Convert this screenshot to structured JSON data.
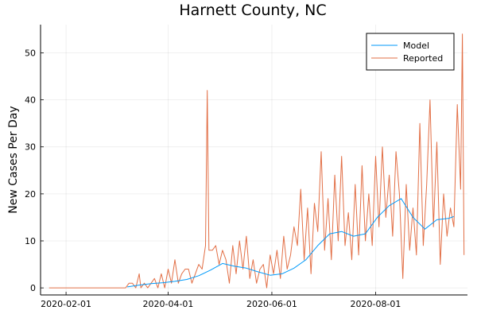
{
  "chart_data": {
    "type": "line",
    "title": "Harnett County, NC",
    "xlabel": "",
    "ylabel": "New Cases Per Day",
    "xlim": [
      "2020-01-17",
      "2020-09-24"
    ],
    "ylim": [
      -1.5,
      56
    ],
    "x_ticks": [
      "2020-02-01",
      "2020-04-01",
      "2020-06-01",
      "2020-08-01"
    ],
    "y_ticks": [
      0,
      10,
      20,
      30,
      40,
      50
    ],
    "grid": true,
    "legend": "top-right",
    "series": [
      {
        "name": "Model",
        "color": "#009AFA",
        "points": [
          [
            "2020-03-08",
            0.2
          ],
          [
            "2020-03-15",
            0.6
          ],
          [
            "2020-03-22",
            0.9
          ],
          [
            "2020-03-29",
            1.1
          ],
          [
            "2020-04-05",
            1.4
          ],
          [
            "2020-04-12",
            1.8
          ],
          [
            "2020-04-19",
            2.6
          ],
          [
            "2020-04-26",
            3.8
          ],
          [
            "2020-05-03",
            5.2
          ],
          [
            "2020-05-10",
            4.6
          ],
          [
            "2020-05-17",
            4.2
          ],
          [
            "2020-05-24",
            3.4
          ],
          [
            "2020-05-31",
            2.7
          ],
          [
            "2020-06-07",
            3.0
          ],
          [
            "2020-06-14",
            4.2
          ],
          [
            "2020-06-21",
            6.0
          ],
          [
            "2020-06-28",
            9.0
          ],
          [
            "2020-07-05",
            11.5
          ],
          [
            "2020-07-12",
            12.0
          ],
          [
            "2020-07-19",
            11.0
          ],
          [
            "2020-07-26",
            11.5
          ],
          [
            "2020-08-02",
            15.0
          ],
          [
            "2020-08-09",
            17.5
          ],
          [
            "2020-08-16",
            19.0
          ],
          [
            "2020-08-23",
            15.0
          ],
          [
            "2020-08-30",
            12.5
          ],
          [
            "2020-09-06",
            14.5
          ],
          [
            "2020-09-13",
            14.8
          ],
          [
            "2020-09-16",
            15.2
          ]
        ]
      },
      {
        "name": "Reported",
        "color": "#E26F46",
        "points": [
          [
            "2020-01-22",
            0
          ],
          [
            "2020-03-07",
            0
          ],
          [
            "2020-03-09",
            1
          ],
          [
            "2020-03-11",
            1
          ],
          [
            "2020-03-13",
            0
          ],
          [
            "2020-03-15",
            3
          ],
          [
            "2020-03-16",
            0
          ],
          [
            "2020-03-18",
            1
          ],
          [
            "2020-03-20",
            0
          ],
          [
            "2020-03-22",
            1
          ],
          [
            "2020-03-24",
            2
          ],
          [
            "2020-03-26",
            0
          ],
          [
            "2020-03-28",
            3
          ],
          [
            "2020-03-30",
            0
          ],
          [
            "2020-04-01",
            4
          ],
          [
            "2020-04-03",
            1
          ],
          [
            "2020-04-05",
            6
          ],
          [
            "2020-04-07",
            1
          ],
          [
            "2020-04-09",
            3
          ],
          [
            "2020-04-11",
            4
          ],
          [
            "2020-04-13",
            4
          ],
          [
            "2020-04-15",
            1
          ],
          [
            "2020-04-17",
            3
          ],
          [
            "2020-04-19",
            5
          ],
          [
            "2020-04-21",
            4
          ],
          [
            "2020-04-23",
            9
          ],
          [
            "2020-04-24",
            42
          ],
          [
            "2020-04-25",
            8
          ],
          [
            "2020-04-27",
            8
          ],
          [
            "2020-04-29",
            9
          ],
          [
            "2020-05-01",
            5
          ],
          [
            "2020-05-03",
            8
          ],
          [
            "2020-05-05",
            6
          ],
          [
            "2020-05-07",
            1
          ],
          [
            "2020-05-09",
            9
          ],
          [
            "2020-05-11",
            3
          ],
          [
            "2020-05-13",
            10
          ],
          [
            "2020-05-15",
            4
          ],
          [
            "2020-05-17",
            11
          ],
          [
            "2020-05-19",
            2
          ],
          [
            "2020-05-21",
            6
          ],
          [
            "2020-05-23",
            1
          ],
          [
            "2020-05-25",
            4
          ],
          [
            "2020-05-27",
            5
          ],
          [
            "2020-05-29",
            0
          ],
          [
            "2020-05-31",
            7
          ],
          [
            "2020-06-02",
            3
          ],
          [
            "2020-06-04",
            8
          ],
          [
            "2020-06-06",
            2
          ],
          [
            "2020-06-08",
            11
          ],
          [
            "2020-06-10",
            4
          ],
          [
            "2020-06-12",
            7
          ],
          [
            "2020-06-14",
            13
          ],
          [
            "2020-06-16",
            9
          ],
          [
            "2020-06-18",
            21
          ],
          [
            "2020-06-20",
            6
          ],
          [
            "2020-06-22",
            17
          ],
          [
            "2020-06-24",
            3
          ],
          [
            "2020-06-26",
            18
          ],
          [
            "2020-06-28",
            12
          ],
          [
            "2020-06-30",
            29
          ],
          [
            "2020-07-02",
            8
          ],
          [
            "2020-07-04",
            19
          ],
          [
            "2020-07-06",
            6
          ],
          [
            "2020-07-08",
            24
          ],
          [
            "2020-07-10",
            10
          ],
          [
            "2020-07-12",
            28
          ],
          [
            "2020-07-14",
            9
          ],
          [
            "2020-07-16",
            16
          ],
          [
            "2020-07-18",
            6
          ],
          [
            "2020-07-20",
            22
          ],
          [
            "2020-07-22",
            7
          ],
          [
            "2020-07-24",
            26
          ],
          [
            "2020-07-26",
            10
          ],
          [
            "2020-07-28",
            20
          ],
          [
            "2020-07-30",
            9
          ],
          [
            "2020-08-01",
            28
          ],
          [
            "2020-08-03",
            13
          ],
          [
            "2020-08-05",
            30
          ],
          [
            "2020-08-07",
            15
          ],
          [
            "2020-08-09",
            24
          ],
          [
            "2020-08-11",
            11
          ],
          [
            "2020-08-13",
            29
          ],
          [
            "2020-08-15",
            20
          ],
          [
            "2020-08-17",
            2
          ],
          [
            "2020-08-19",
            22
          ],
          [
            "2020-08-21",
            8
          ],
          [
            "2020-08-23",
            17
          ],
          [
            "2020-08-25",
            7
          ],
          [
            "2020-08-27",
            35
          ],
          [
            "2020-08-29",
            9
          ],
          [
            "2020-08-31",
            22
          ],
          [
            "2020-09-02",
            40
          ],
          [
            "2020-09-04",
            13
          ],
          [
            "2020-09-06",
            31
          ],
          [
            "2020-09-08",
            5
          ],
          [
            "2020-09-10",
            20
          ],
          [
            "2020-09-12",
            11
          ],
          [
            "2020-09-14",
            17
          ],
          [
            "2020-09-16",
            13
          ],
          [
            "2020-09-18",
            39
          ],
          [
            "2020-09-20",
            21
          ],
          [
            "2020-09-21",
            54
          ],
          [
            "2020-09-22",
            7
          ]
        ]
      }
    ]
  }
}
